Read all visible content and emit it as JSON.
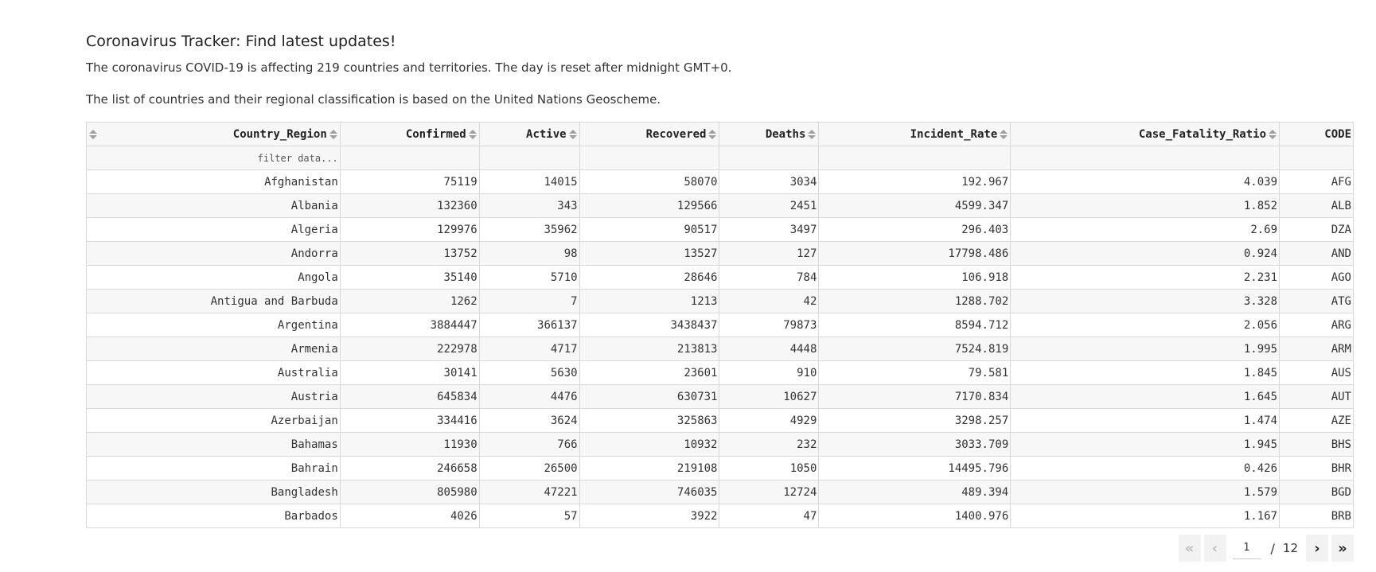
{
  "page": {
    "title": "Coronavirus Tracker: Find latest updates!",
    "paragraph1": "The coronavirus COVID-19 is affecting 219 countries and territories. The day is reset after midnight GMT+0.",
    "paragraph2": "The list of countries and their regional classification is based on the United Nations Geoscheme."
  },
  "table": {
    "columns": [
      "Country_Region",
      "Confirmed",
      "Active",
      "Recovered",
      "Deaths",
      "Incident_Rate",
      "Case_Fatality_Ratio",
      "CODE"
    ],
    "filter_placeholder": "filter data...",
    "rows": [
      [
        "Afghanistan",
        "75119",
        "14015",
        "58070",
        "3034",
        "192.967",
        "4.039",
        "AFG"
      ],
      [
        "Albania",
        "132360",
        "343",
        "129566",
        "2451",
        "4599.347",
        "1.852",
        "ALB"
      ],
      [
        "Algeria",
        "129976",
        "35962",
        "90517",
        "3497",
        "296.403",
        "2.69",
        "DZA"
      ],
      [
        "Andorra",
        "13752",
        "98",
        "13527",
        "127",
        "17798.486",
        "0.924",
        "AND"
      ],
      [
        "Angola",
        "35140",
        "5710",
        "28646",
        "784",
        "106.918",
        "2.231",
        "AGO"
      ],
      [
        "Antigua and Barbuda",
        "1262",
        "7",
        "1213",
        "42",
        "1288.702",
        "3.328",
        "ATG"
      ],
      [
        "Argentina",
        "3884447",
        "366137",
        "3438437",
        "79873",
        "8594.712",
        "2.056",
        "ARG"
      ],
      [
        "Armenia",
        "222978",
        "4717",
        "213813",
        "4448",
        "7524.819",
        "1.995",
        "ARM"
      ],
      [
        "Australia",
        "30141",
        "5630",
        "23601",
        "910",
        "79.581",
        "1.845",
        "AUS"
      ],
      [
        "Austria",
        "645834",
        "4476",
        "630731",
        "10627",
        "7170.834",
        "1.645",
        "AUT"
      ],
      [
        "Azerbaijan",
        "334416",
        "3624",
        "325863",
        "4929",
        "3298.257",
        "1.474",
        "AZE"
      ],
      [
        "Bahamas",
        "11930",
        "766",
        "10932",
        "232",
        "3033.709",
        "1.945",
        "BHS"
      ],
      [
        "Bahrain",
        "246658",
        "26500",
        "219108",
        "1050",
        "14495.796",
        "0.426",
        "BHR"
      ],
      [
        "Bangladesh",
        "805980",
        "47221",
        "746035",
        "12724",
        "489.394",
        "1.579",
        "BGD"
      ],
      [
        "Barbados",
        "4026",
        "57",
        "3922",
        "47",
        "1400.976",
        "1.167",
        "BRB"
      ]
    ]
  },
  "pagination": {
    "current_page": "1",
    "separator": "/",
    "total_pages": "12",
    "first_icon": "«",
    "prev_icon": "‹",
    "next_icon": "›",
    "last_icon": "»"
  }
}
